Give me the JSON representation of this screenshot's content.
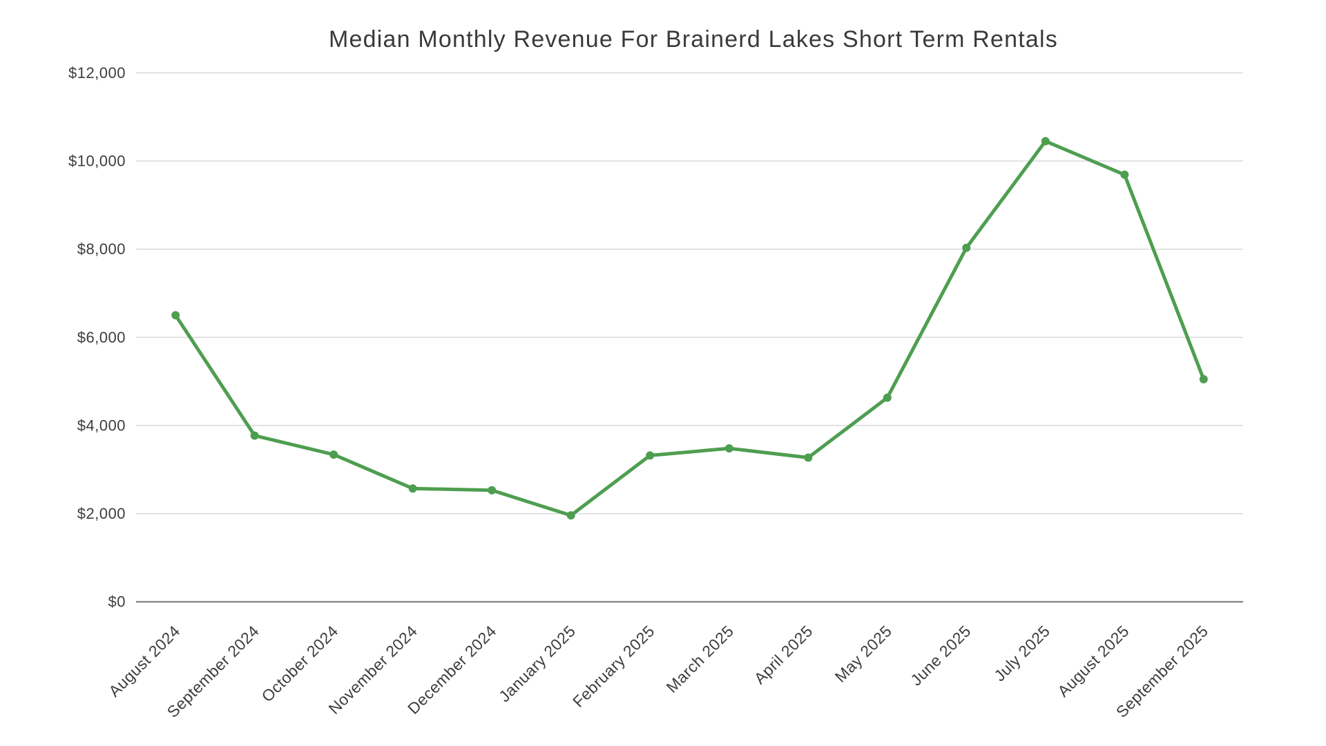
{
  "page": {
    "background_color": "#ffffff"
  },
  "chart_data": {
    "type": "line",
    "title": "Median Monthly Revenue For Brainerd Lakes Short Term Rentals",
    "categories": [
      "August 2024",
      "September 2024",
      "October 2024",
      "November 2024",
      "December 2024",
      "January 2025",
      "February 2025",
      "March 2025",
      "April 2025",
      "May 2025",
      "June 2025",
      "July 2025",
      "August 2025",
      "September 2025"
    ],
    "series": [
      {
        "name": "Median Monthly Revenue",
        "color": "#4e9e50",
        "values": [
          6500,
          3770,
          3340,
          2570,
          2530,
          1960,
          3320,
          3480,
          3270,
          4630,
          8030,
          10450,
          9690,
          5050
        ]
      }
    ],
    "xlabel": "",
    "ylabel": "",
    "ylim": [
      0,
      12000
    ],
    "ytick_values": [
      0,
      2000,
      4000,
      6000,
      8000,
      10000,
      12000
    ],
    "ytick_labels": [
      "$0",
      "$2,000",
      "$4,000",
      "$6,000",
      "$8,000",
      "$10,000",
      "$12,000"
    ],
    "x_label_rotation": -45,
    "grid": true,
    "legend": false,
    "marker": "circle"
  },
  "colors": {
    "line": "#4e9e50",
    "gridline": "#d9d9d9",
    "axis": "#8c8c8c",
    "text": "#3d3d3d",
    "background": "#ffffff"
  }
}
